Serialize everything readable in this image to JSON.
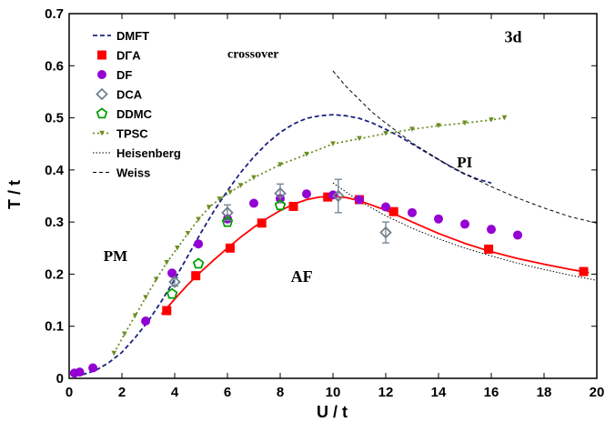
{
  "chart_data": {
    "type": "scatter",
    "xlabel": "U / t",
    "ylabel": "T / t",
    "xlim": [
      0,
      20
    ],
    "ylim": [
      0,
      0.7
    ],
    "xticks": [
      0,
      2,
      4,
      6,
      8,
      10,
      12,
      14,
      16,
      18,
      20
    ],
    "yticks": [
      0,
      0.1,
      0.2,
      0.3,
      0.4,
      0.5,
      0.6,
      0.7
    ],
    "legend_position": "top-left",
    "annotations": [
      {
        "text": "3d",
        "x": 16.5,
        "y": 0.645
      },
      {
        "text": "crossover",
        "x": 6.0,
        "y": 0.615
      },
      {
        "text": "PI",
        "x": 14.7,
        "y": 0.405
      },
      {
        "text": "PM",
        "x": 1.3,
        "y": 0.225
      },
      {
        "text": "AF",
        "x": 8.4,
        "y": 0.185
      }
    ],
    "series": [
      {
        "name": "DMFT",
        "kind": "line",
        "style": "dashed",
        "color": "#1a237e",
        "x": [
          0.5,
          1,
          1.5,
          2,
          2.5,
          3,
          3.5,
          4,
          4.5,
          5,
          5.5,
          6,
          6.5,
          7,
          7.5,
          8,
          8.5,
          9,
          9.5,
          10,
          10.5,
          11,
          11.5,
          12,
          12.5,
          13,
          13.5,
          14,
          14.5,
          15,
          15.5,
          16
        ],
        "y": [
          0.007,
          0.015,
          0.03,
          0.05,
          0.078,
          0.11,
          0.148,
          0.19,
          0.235,
          0.28,
          0.322,
          0.36,
          0.395,
          0.425,
          0.451,
          0.472,
          0.488,
          0.499,
          0.504,
          0.506,
          0.504,
          0.499,
          0.49,
          0.478,
          0.465,
          0.45,
          0.435,
          0.42,
          0.405,
          0.392,
          0.382,
          0.375
        ]
      },
      {
        "name": "DΓA",
        "kind": "marker",
        "marker": "square",
        "color": "#ff0000",
        "x": [
          3.7,
          4.8,
          6.1,
          7.3,
          8.5,
          9.8,
          11.0,
          12.3,
          15.9,
          19.5
        ],
        "y": [
          0.13,
          0.197,
          0.25,
          0.298,
          0.33,
          0.348,
          0.343,
          0.32,
          0.248,
          0.205
        ],
        "fit": {
          "x": [
            3.5,
            4,
            4.5,
            5,
            5.5,
            6,
            6.5,
            7,
            7.5,
            8,
            8.5,
            9,
            9.5,
            10,
            10.5,
            11,
            12,
            13,
            14,
            15,
            16,
            17,
            18,
            19,
            19.7
          ],
          "y": [
            0.123,
            0.152,
            0.18,
            0.205,
            0.228,
            0.25,
            0.271,
            0.29,
            0.307,
            0.322,
            0.334,
            0.343,
            0.348,
            0.349,
            0.347,
            0.341,
            0.323,
            0.3,
            0.278,
            0.259,
            0.243,
            0.23,
            0.219,
            0.209,
            0.203
          ]
        }
      },
      {
        "name": "DF",
        "kind": "marker",
        "marker": "circle",
        "color": "#9400d3",
        "x": [
          0.2,
          0.4,
          0.9,
          2.9,
          3.9,
          4.9,
          6.0,
          7.0,
          8.0,
          9.0,
          10.0,
          11.0,
          12.0,
          13.0,
          14.0,
          15.0,
          16.0,
          17.0
        ],
        "y": [
          0.01,
          0.012,
          0.02,
          0.11,
          0.202,
          0.258,
          0.306,
          0.336,
          0.345,
          0.354,
          0.352,
          0.343,
          0.329,
          0.318,
          0.306,
          0.296,
          0.286,
          0.275
        ]
      },
      {
        "name": "DCA",
        "kind": "marker",
        "marker": "diamond",
        "color": "#708090",
        "x": [
          4.0,
          6.0,
          8.0,
          10.2,
          12.0
        ],
        "y": [
          0.185,
          0.318,
          0.355,
          0.35,
          0.28
        ],
        "err": [
          0.008,
          0.015,
          0.018,
          0.032,
          0.02
        ]
      },
      {
        "name": "DDMC",
        "kind": "marker",
        "marker": "pentagon",
        "color": "#00a000",
        "x": [
          3.9,
          4.9,
          6.0,
          8.0
        ],
        "y": [
          0.162,
          0.22,
          0.3,
          0.332
        ]
      },
      {
        "name": "TPSC",
        "kind": "line",
        "style": "dotted",
        "marker": "triangle-down",
        "color": "#6b8e23",
        "x": [
          1.7,
          2.1,
          2.5,
          2.9,
          3.3,
          3.7,
          4.1,
          4.5,
          4.9,
          5.3,
          5.7,
          6.1,
          6.5,
          7.0,
          8.0,
          9.0,
          10.0,
          11.0,
          12.0,
          13.0,
          14.0,
          15.0,
          16.0,
          16.5
        ],
        "y": [
          0.048,
          0.085,
          0.12,
          0.155,
          0.19,
          0.222,
          0.25,
          0.278,
          0.305,
          0.328,
          0.344,
          0.357,
          0.37,
          0.385,
          0.41,
          0.43,
          0.45,
          0.46,
          0.47,
          0.478,
          0.485,
          0.49,
          0.496,
          0.5
        ]
      },
      {
        "name": "Heisenberg",
        "kind": "line",
        "style": "dotted-fine",
        "color": "#000000",
        "x": [
          10,
          11,
          12,
          13,
          14,
          15,
          16,
          17,
          18,
          19,
          20
        ],
        "y": [
          0.375,
          0.34,
          0.312,
          0.288,
          0.268,
          0.25,
          0.235,
          0.221,
          0.209,
          0.198,
          0.188
        ]
      },
      {
        "name": "Weiss",
        "kind": "line",
        "style": "dashed-fine",
        "color": "#000000",
        "x": [
          10,
          10.5,
          11,
          11.5,
          12,
          13,
          14,
          15,
          16,
          17,
          18,
          19,
          20
        ],
        "y": [
          0.59,
          0.56,
          0.535,
          0.51,
          0.49,
          0.452,
          0.42,
          0.392,
          0.368,
          0.346,
          0.327,
          0.31,
          0.298
        ]
      }
    ]
  }
}
